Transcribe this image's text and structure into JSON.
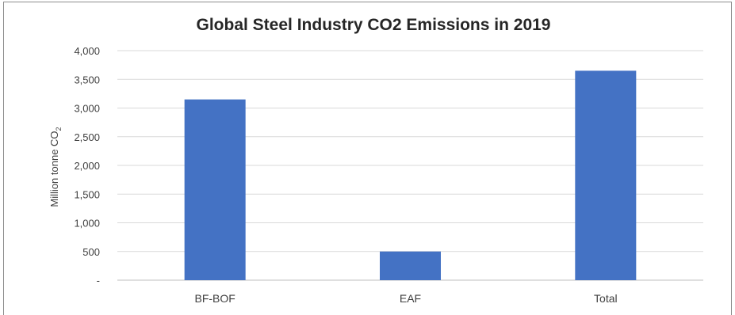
{
  "chart_data": {
    "type": "bar",
    "title": "Global Steel Industry CO2 Emissions in 2019",
    "ylabel": "Million tonne CO",
    "ylabel_subscript": "2",
    "xlabel": "",
    "categories": [
      "BF-BOF",
      "EAF",
      "Total"
    ],
    "series": [
      {
        "values": [
          3150,
          500,
          3650
        ]
      }
    ],
    "ylim": [
      0,
      4000
    ],
    "yticks": [
      0,
      500,
      1000,
      1500,
      2000,
      2500,
      3000,
      3500,
      4000
    ],
    "ytick_labels": [
      "-",
      "500",
      "1,000",
      "1,500",
      "2,000",
      "2,500",
      "3,000",
      "3,500",
      "4,000"
    ],
    "grid": true,
    "legend": "none",
    "colors": {
      "bar": "#4472c4",
      "grid": "#d9d9d9",
      "axis": "#bfbfbf",
      "text": "#404040",
      "title": "#262626"
    }
  }
}
